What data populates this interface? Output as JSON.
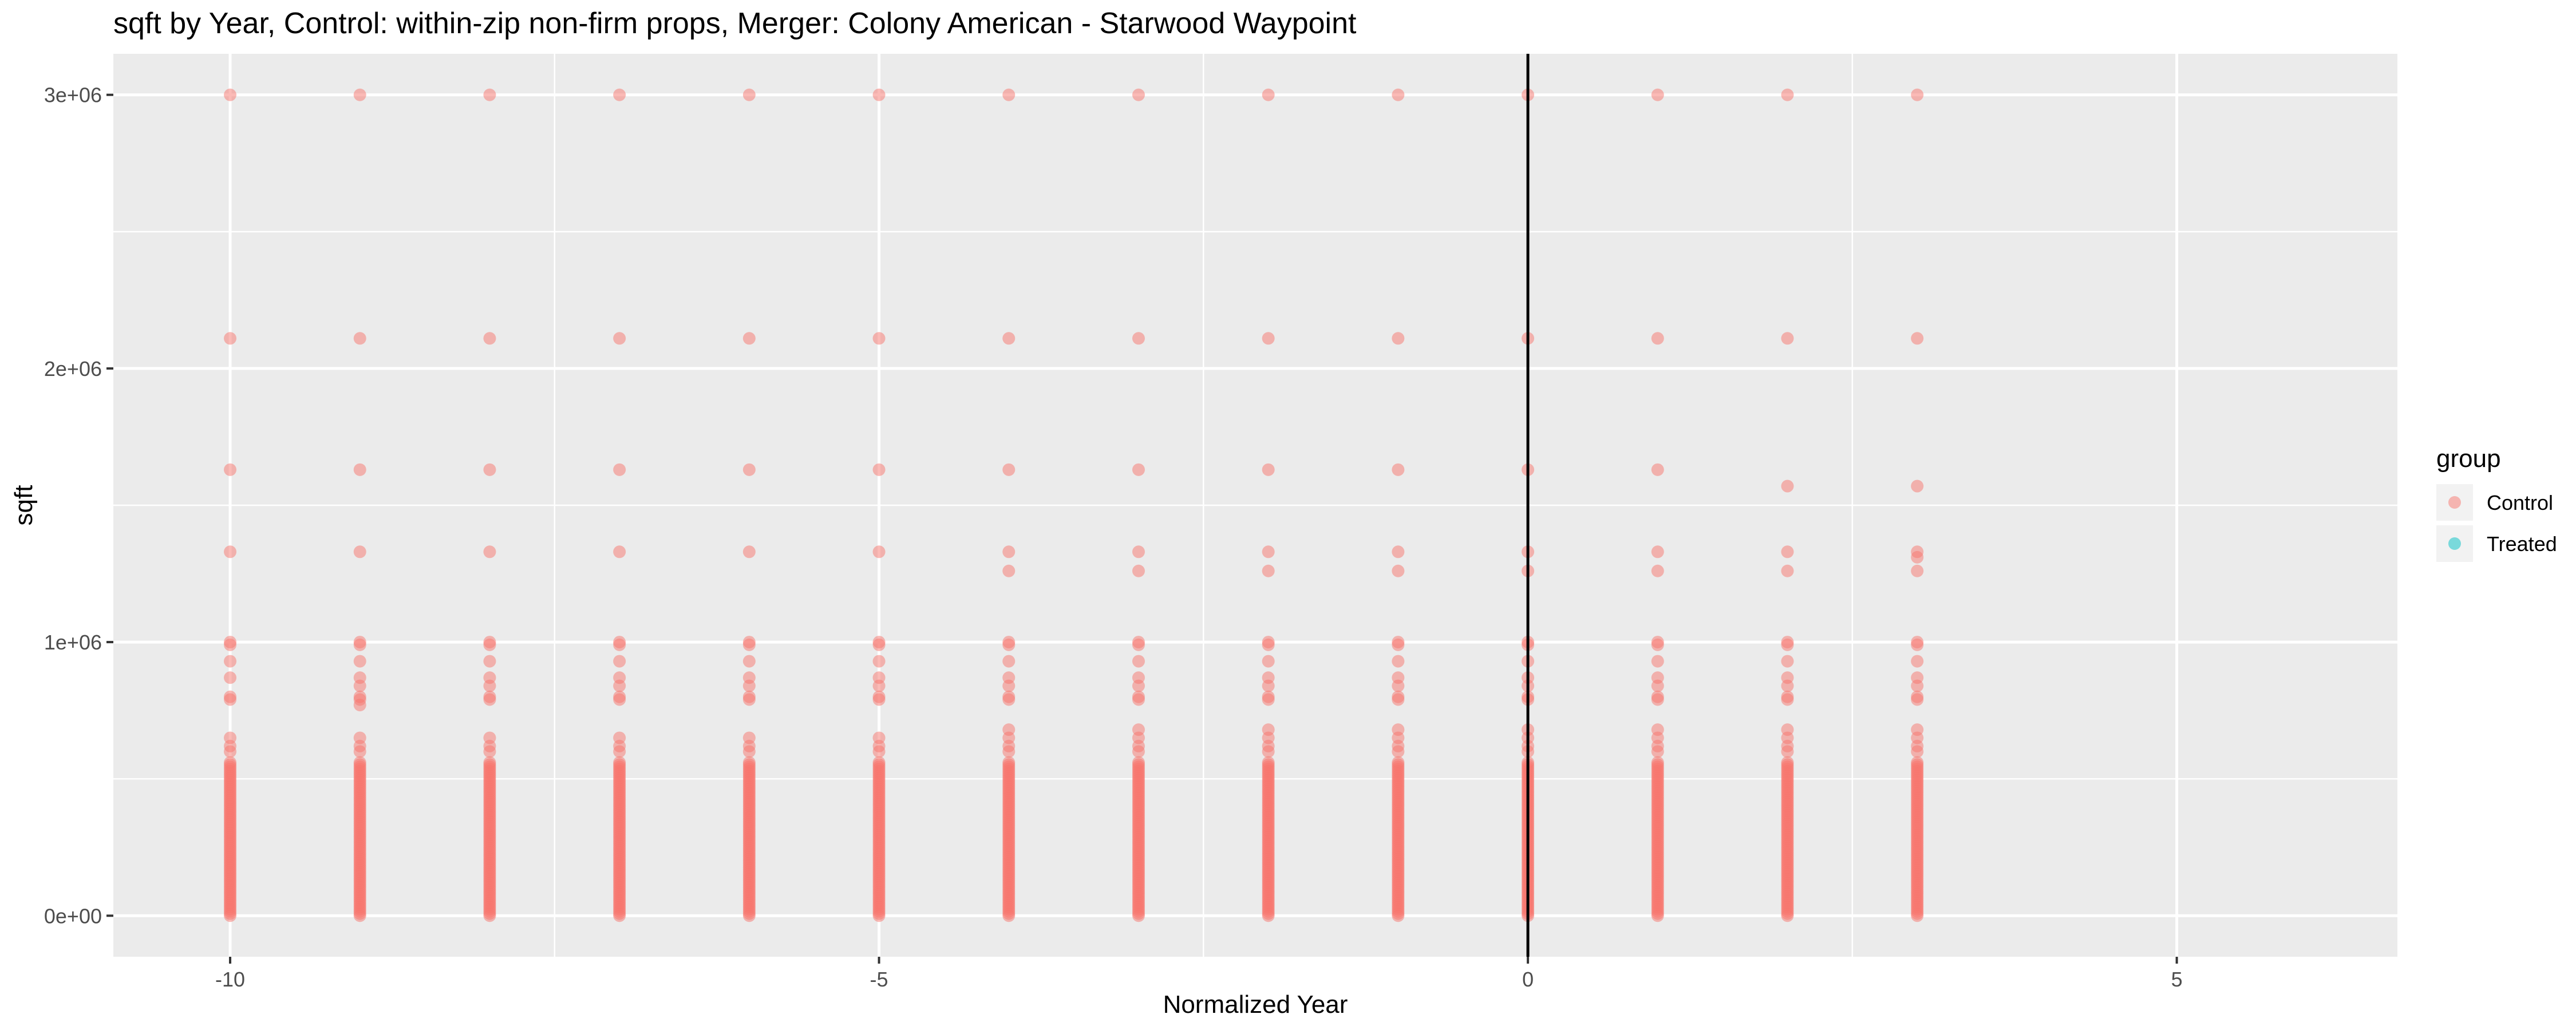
{
  "chart_data": {
    "type": "scatter",
    "title": "sqft by Year, Control: within-zip non-firm props, Merger: Colony American - Starwood Waypoint",
    "xlabel": "Normalized Year",
    "ylabel": "sqft",
    "xlim": [
      -10.9,
      6.7
    ],
    "ylim": [
      -150000,
      3150000
    ],
    "x_ticks": [
      {
        "value": -10,
        "label": "-10"
      },
      {
        "value": -5,
        "label": "-5"
      },
      {
        "value": 0,
        "label": "0"
      },
      {
        "value": 5,
        "label": "5"
      }
    ],
    "y_ticks": [
      {
        "value": 0,
        "label": "0e+00"
      },
      {
        "value": 1000000,
        "label": "1e+06"
      },
      {
        "value": 2000000,
        "label": "2e+06"
      },
      {
        "value": 3000000,
        "label": "3e+06"
      }
    ],
    "grid": true,
    "vline": {
      "x": 0,
      "color": "#000000"
    },
    "legend": {
      "title": "group",
      "position": "right",
      "entries": [
        {
          "name": "Control",
          "color": "#F8766D"
        },
        {
          "name": "Treated",
          "color": "#00BFC4"
        }
      ]
    },
    "series": [
      {
        "name": "Control",
        "color": "#F8766D",
        "x": [
          -10,
          -9,
          -8,
          -7,
          -6,
          -5,
          -4,
          -3,
          -2,
          -1,
          0,
          1,
          2,
          3
        ],
        "dense_range": [
          0,
          560000
        ],
        "outliers": [
          {
            "x": -10,
            "y": [
              3000000,
              2110000,
              1630000,
              1330000,
              1000000,
              990000,
              930000,
              870000,
              800000,
              790000,
              650000,
              620000,
              600000
            ]
          },
          {
            "x": -9,
            "y": [
              3000000,
              2110000,
              1630000,
              1330000,
              1000000,
              990000,
              930000,
              870000,
              840000,
              800000,
              790000,
              770000,
              650000,
              620000,
              600000
            ]
          },
          {
            "x": -8,
            "y": [
              3000000,
              2110000,
              1630000,
              1330000,
              1000000,
              990000,
              930000,
              870000,
              840000,
              800000,
              790000,
              650000,
              620000,
              600000
            ]
          },
          {
            "x": -7,
            "y": [
              3000000,
              2110000,
              1630000,
              1330000,
              1000000,
              990000,
              930000,
              870000,
              840000,
              800000,
              790000,
              650000,
              620000,
              600000
            ]
          },
          {
            "x": -6,
            "y": [
              3000000,
              2110000,
              1630000,
              1330000,
              1000000,
              990000,
              930000,
              870000,
              840000,
              800000,
              790000,
              650000,
              620000,
              600000
            ]
          },
          {
            "x": -5,
            "y": [
              3000000,
              2110000,
              1630000,
              1330000,
              1000000,
              990000,
              930000,
              870000,
              840000,
              800000,
              790000,
              650000,
              620000,
              600000
            ]
          },
          {
            "x": -4,
            "y": [
              3000000,
              2110000,
              1630000,
              1330000,
              1260000,
              1000000,
              990000,
              930000,
              870000,
              840000,
              800000,
              790000,
              680000,
              650000,
              620000,
              600000
            ]
          },
          {
            "x": -3,
            "y": [
              3000000,
              2110000,
              1630000,
              1330000,
              1260000,
              1000000,
              990000,
              930000,
              870000,
              840000,
              800000,
              790000,
              680000,
              650000,
              620000,
              600000
            ]
          },
          {
            "x": -2,
            "y": [
              3000000,
              2110000,
              1630000,
              1330000,
              1260000,
              1000000,
              990000,
              930000,
              870000,
              840000,
              800000,
              790000,
              680000,
              650000,
              620000,
              600000
            ]
          },
          {
            "x": -1,
            "y": [
              3000000,
              2110000,
              1630000,
              1330000,
              1260000,
              1000000,
              990000,
              930000,
              870000,
              840000,
              800000,
              790000,
              680000,
              650000,
              620000,
              600000
            ]
          },
          {
            "x": 0,
            "y": [
              3000000,
              2110000,
              1630000,
              1330000,
              1260000,
              1000000,
              990000,
              930000,
              870000,
              840000,
              800000,
              790000,
              680000,
              650000,
              620000,
              600000
            ]
          },
          {
            "x": 1,
            "y": [
              3000000,
              2110000,
              1630000,
              1330000,
              1260000,
              1000000,
              990000,
              930000,
              870000,
              840000,
              800000,
              790000,
              680000,
              650000,
              620000,
              600000
            ]
          },
          {
            "x": 2,
            "y": [
              3000000,
              2110000,
              1570000,
              1330000,
              1260000,
              1000000,
              990000,
              930000,
              870000,
              840000,
              800000,
              790000,
              680000,
              650000,
              620000,
              600000
            ]
          },
          {
            "x": 3,
            "y": [
              3000000,
              2110000,
              1570000,
              1330000,
              1310000,
              1260000,
              1000000,
              990000,
              930000,
              870000,
              840000,
              800000,
              790000,
              680000,
              650000,
              620000,
              600000
            ]
          }
        ]
      },
      {
        "name": "Treated",
        "color": "#00BFC4",
        "x": [],
        "y": []
      }
    ]
  }
}
